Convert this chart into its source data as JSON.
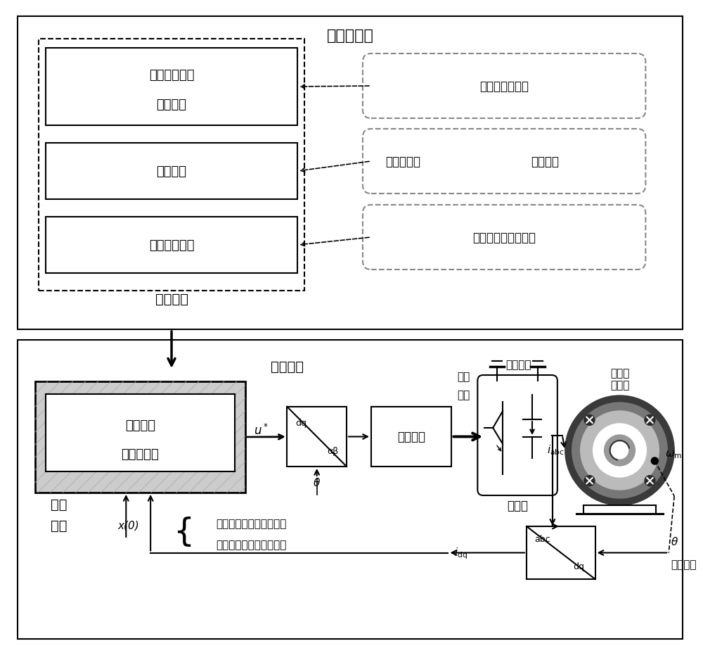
{
  "title_top": "控制器构造",
  "offline_label": "线下计算",
  "realtime_label": "实时控制",
  "box1_line1": "永磁同步电机",
  "box1_line2": "预测模型",
  "box2_text": "价值函数",
  "box3_text": "线性约束方程",
  "right1": "离散化、线性化",
  "right2_normal": "控制目标、",
  "right2_bold": "权重系数",
  "right3": "电流约束、电压约束",
  "lookup_line1": "临界域及",
  "lookup_line2": "最优控制律",
  "online_line1": "线上",
  "online_line2": "查表",
  "x0": "x(0)",
  "u_star": "$u^*$",
  "dq_top": "dq",
  "dq_bot": "αβ",
  "mod_text": "调制算法",
  "switch_line1": "开关",
  "switch_line2": "信号",
  "dc_bus": "直流母线",
  "inverter": "逆变器",
  "motor_line1": "永磁同",
  "motor_line2": "步电机",
  "abc_top": "abc",
  "abc_bot": "dq",
  "i_abc": "$i_{\\mathrm{abc}}$",
  "i_dq": "$i_{\\mathrm{dq}}$",
  "theta_sym": "θ",
  "omega_m": "$\\omega_{\\mathrm{m}}$",
  "measure_angle": "测量角度",
  "measure_line1": "测量转速、电流、观测负",
  "measure_line2": "载转矩、给定转速等信息",
  "bg_color": "#ffffff"
}
